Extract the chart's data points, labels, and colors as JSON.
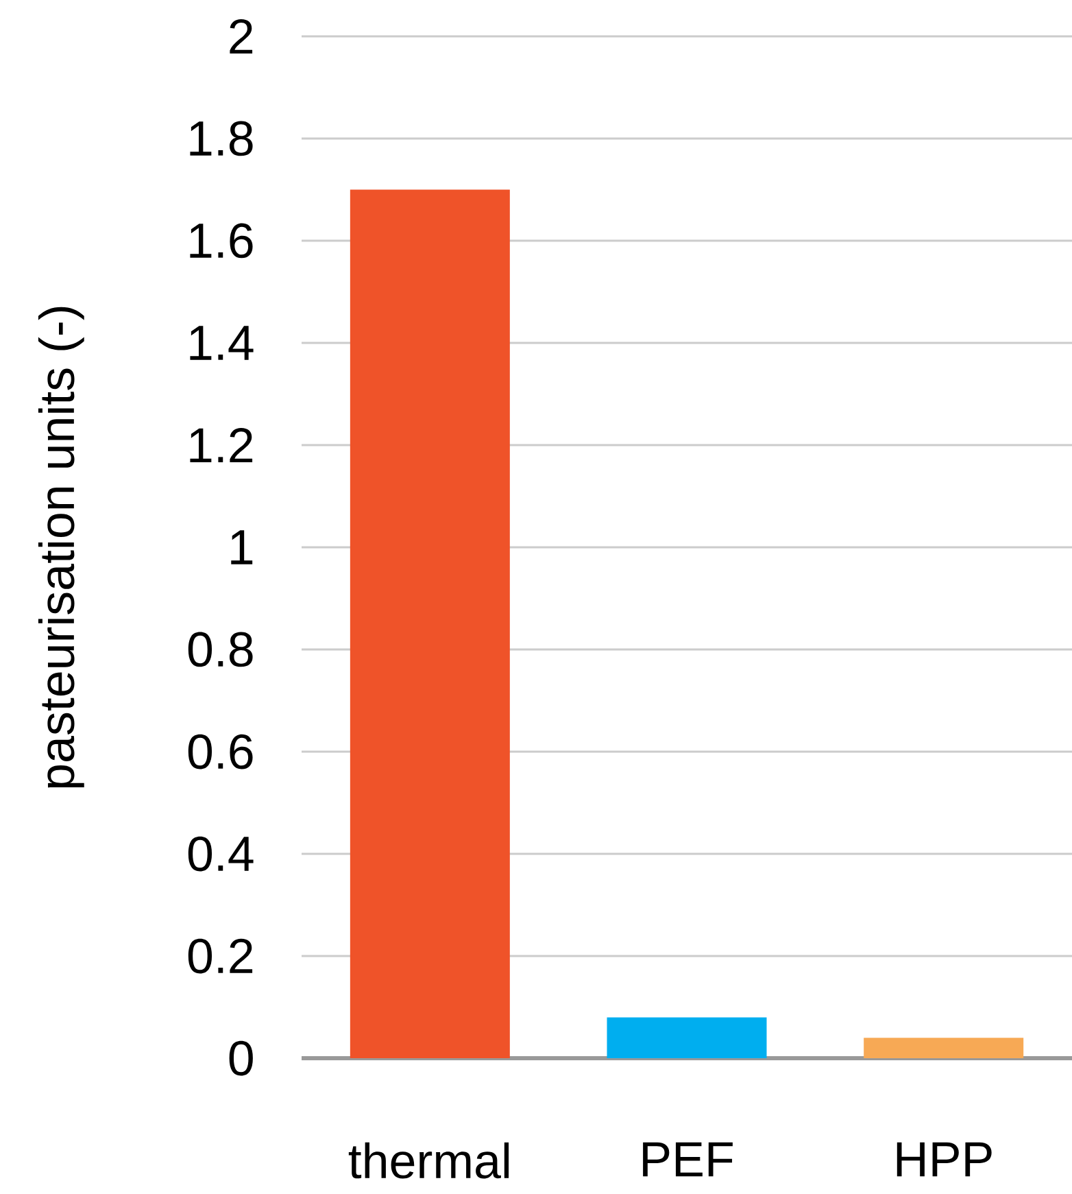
{
  "chart_data": {
    "type": "bar",
    "ylabel": "pasteurisation units (-)",
    "categories": [
      "thermal",
      "PEF",
      "HPP"
    ],
    "values": [
      1.7,
      0.08,
      0.04
    ],
    "colors": [
      "#ef5329",
      "#00aeef",
      "#f7a955"
    ],
    "ylim": [
      0,
      2
    ],
    "yticks": [
      0,
      0.2,
      0.4,
      0.6,
      0.8,
      1,
      1.2,
      1.4,
      1.6,
      1.8,
      2
    ],
    "grid": "y"
  }
}
